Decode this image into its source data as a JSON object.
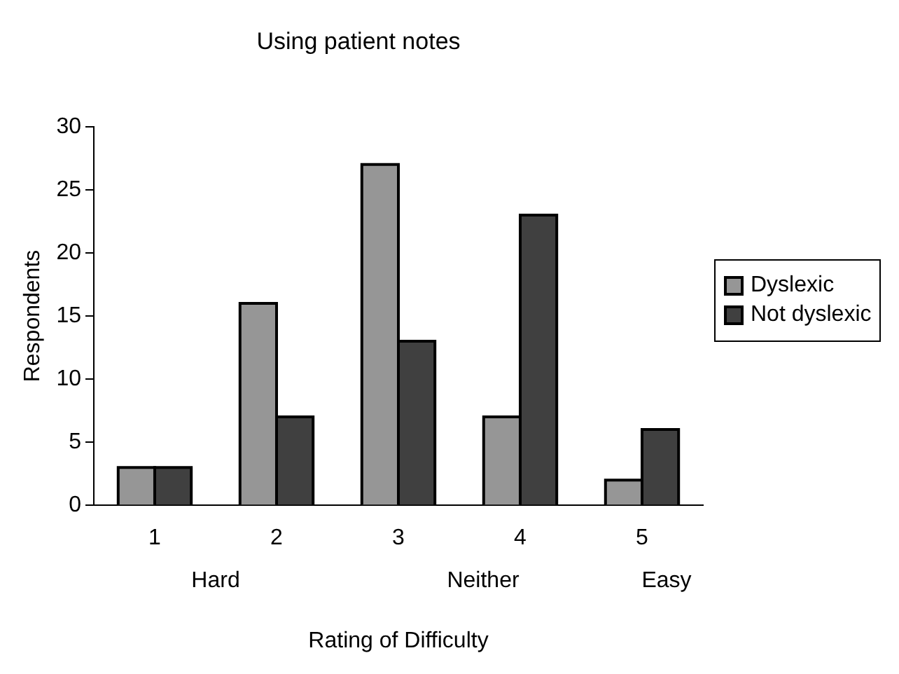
{
  "chart_data": {
    "type": "bar",
    "title": "Using patient notes",
    "xlabel": "Rating of Difficulty",
    "ylabel": "Respondents",
    "categories": [
      "1",
      "2",
      "3",
      "4",
      "5"
    ],
    "series": [
      {
        "name": "Dyslexic",
        "color": "#969696",
        "values": [
          3,
          16,
          27,
          7,
          2
        ]
      },
      {
        "name": "Not dyslexic",
        "color": "#404040",
        "values": [
          3,
          7,
          13,
          23,
          6
        ]
      }
    ],
    "ylim": [
      0,
      30
    ],
    "yticks": [
      0,
      5,
      10,
      15,
      20,
      25,
      30
    ],
    "grid": false,
    "legend": "right",
    "annotations": [
      "Hard",
      "Neither",
      "Easy"
    ]
  }
}
